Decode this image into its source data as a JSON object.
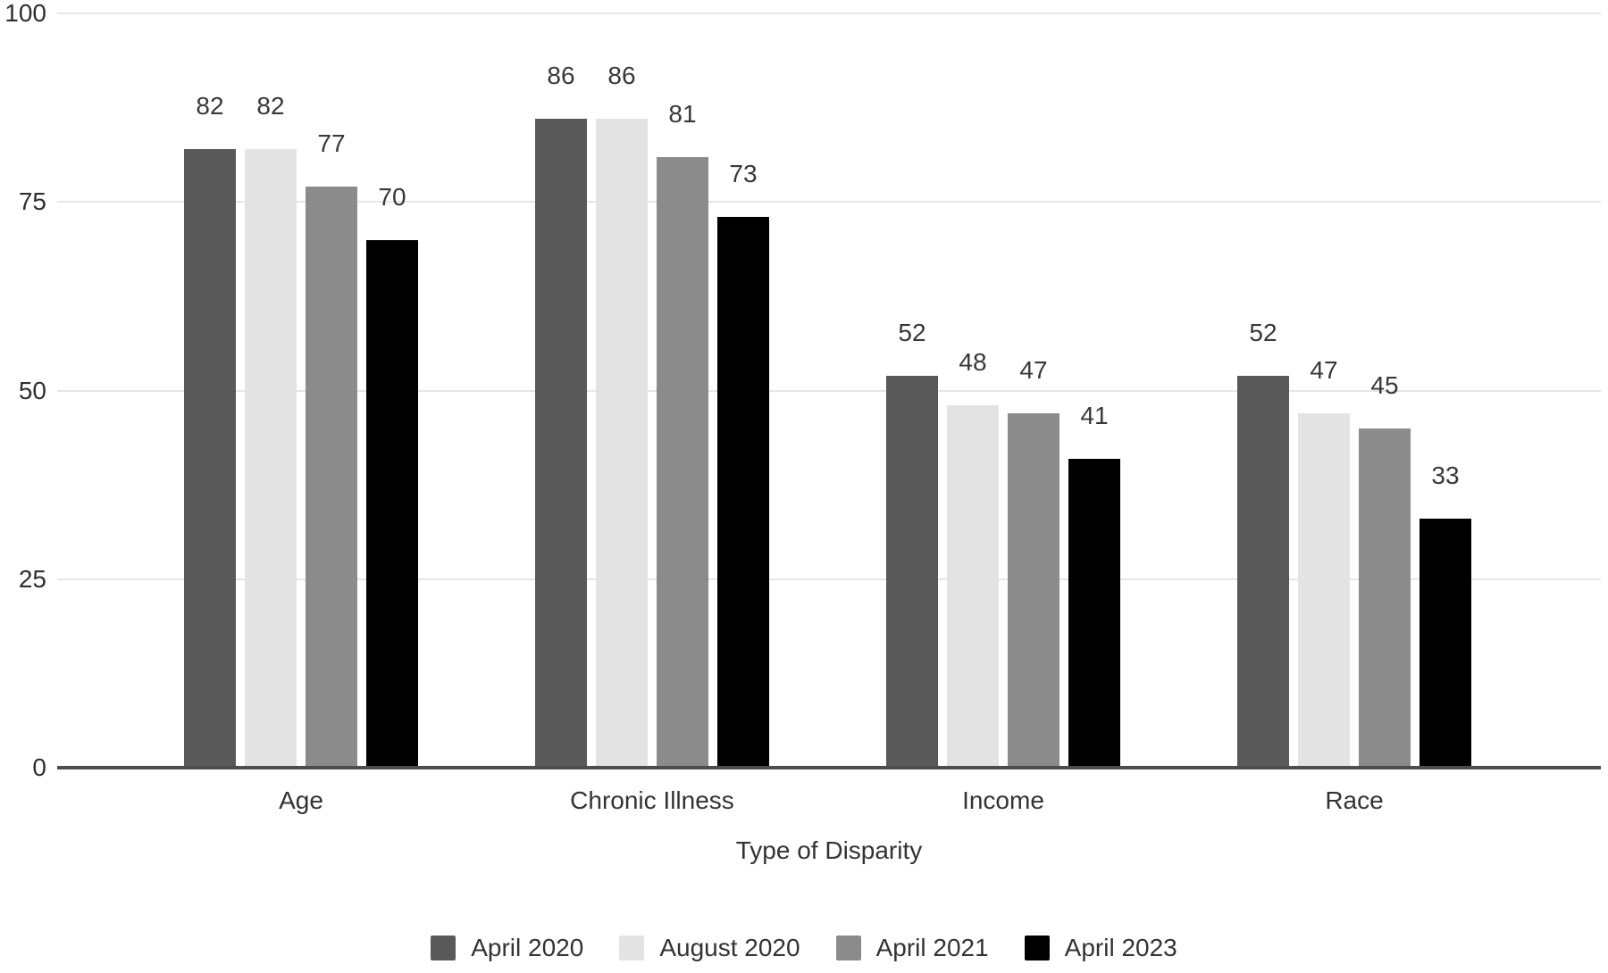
{
  "chart_data": {
    "type": "bar",
    "title": "",
    "xlabel": "Type of Disparity",
    "ylabel": "",
    "categories": [
      "Age",
      "Chronic Illness",
      "Income",
      "Race"
    ],
    "series": [
      {
        "name": "April 2020",
        "color": "#595959",
        "values": [
          82,
          86,
          52,
          52
        ]
      },
      {
        "name": "August 2020",
        "color": "#e3e3e3",
        "values": [
          82,
          86,
          48,
          47
        ]
      },
      {
        "name": "April 2021",
        "color": "#8b8b8b",
        "values": [
          77,
          81,
          47,
          45
        ]
      },
      {
        "name": "April 2023",
        "color": "#000000",
        "values": [
          70,
          73,
          41,
          33
        ]
      }
    ],
    "y_ticks": [
      0,
      25,
      50,
      75,
      100
    ],
    "ylim": [
      0,
      100
    ],
    "grid": true,
    "value_labels": true,
    "legend_position": "bottom"
  },
  "colors": {
    "background": "#ffffff",
    "gridline": "#e6e6e6",
    "axis_baseline": "#4d4d4d",
    "tick_text": "#2f2f2f",
    "label_text": "#333333"
  }
}
